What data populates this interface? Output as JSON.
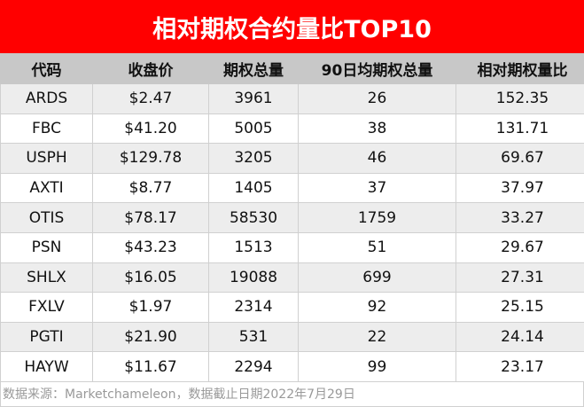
{
  "chart_data": {
    "type": "table",
    "title": "相对期权合约量比TOP10",
    "columns": [
      "代码",
      "收盘价",
      "期权总量",
      "90日均期权总量",
      "相对期权量比"
    ],
    "rows": [
      [
        "ARDS",
        "$2.47",
        "3961",
        "26",
        "152.35"
      ],
      [
        "FBC",
        "$41.20",
        "5005",
        "38",
        "131.71"
      ],
      [
        "USPH",
        "$129.78",
        "3205",
        "46",
        "69.67"
      ],
      [
        "AXTI",
        "$8.77",
        "1405",
        "37",
        "37.97"
      ],
      [
        "OTIS",
        "$78.17",
        "58530",
        "1759",
        "33.27"
      ],
      [
        "PSN",
        "$43.23",
        "1513",
        "51",
        "29.67"
      ],
      [
        "SHLX",
        "$16.05",
        "19088",
        "699",
        "27.31"
      ],
      [
        "FXLV",
        "$1.97",
        "2314",
        "92",
        "25.15"
      ],
      [
        "PGTI",
        "$21.90",
        "531",
        "22",
        "24.14"
      ],
      [
        "HAYW",
        "$11.67",
        "2294",
        "99",
        "23.17"
      ]
    ],
    "footnote": "数据来源：Marketchameleon，数据截止日期2022年7月29日"
  },
  "colors": {
    "title_bg": "#ff0000",
    "header_bg": "#c8c8c8",
    "row_alt": "#ededed"
  }
}
